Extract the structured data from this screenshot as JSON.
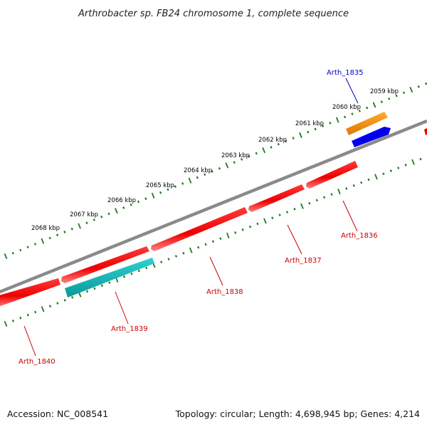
{
  "title": "Arthrobacter sp. FB24 chromosome 1, complete sequence",
  "footer": {
    "accession": "Accession: NC_008541",
    "summary": "Topology: circular; Length: 4,698,945 bp; Genes: 4,214"
  },
  "scale_labels": [
    "2059 kbp",
    "2060 kbp",
    "2061 kbp",
    "2062 kbp",
    "2063 kbp",
    "2064 kbp",
    "2065 kbp",
    "2066 kbp",
    "2067 kbp",
    "2068 kbp"
  ],
  "genes": [
    {
      "name": "Arth_1835",
      "color": "#0000ee",
      "label_color": "#0000cc",
      "strand": "forward-inner"
    },
    {
      "name": "Arth_1836",
      "color": "#ee0000",
      "label_color": "#cc0000",
      "strand": "reverse"
    },
    {
      "name": "Arth_1837",
      "color": "#ee0000",
      "label_color": "#cc0000",
      "strand": "reverse"
    },
    {
      "name": "Arth_1838",
      "color": "#ee0000",
      "label_color": "#cc0000",
      "strand": "reverse"
    },
    {
      "name": "Arth_1839",
      "color": "#ee0000",
      "label_color": "#cc0000",
      "strand": "reverse"
    },
    {
      "name": "Arth_1840",
      "color": "#ee0000",
      "label_color": "#cc0000",
      "strand": "reverse"
    }
  ],
  "colors": {
    "backbone": "#808080",
    "scale_ticks": "#1f7a1f",
    "gene_forward": "#0000ee",
    "gene_reverse": "#ee0000",
    "feature_orange": "#f08a00",
    "feature_cyan": "#10b8b8"
  }
}
